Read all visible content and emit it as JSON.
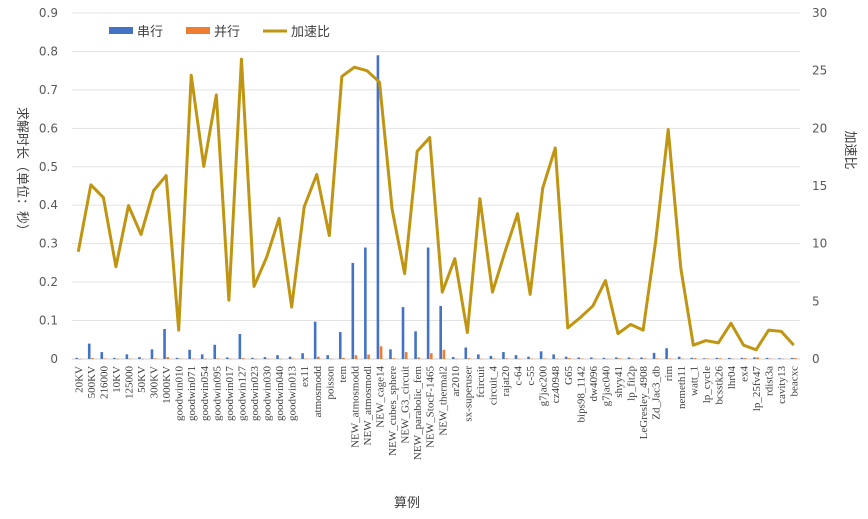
{
  "chart_data": {
    "type": "bar+line",
    "xlabel": "算例",
    "ylabel_left": "求解时长（单位：秒）",
    "ylabel_right": "加速比",
    "ylim_left": [
      0,
      0.9
    ],
    "ylim_right": [
      0,
      30
    ],
    "yticks_left": [
      "0",
      "0.1",
      "0.2",
      "0.3",
      "0.4",
      "0.5",
      "0.6",
      "0.7",
      "0.8",
      "0.9"
    ],
    "yticks_right": [
      "0",
      "5",
      "10",
      "15",
      "20",
      "25",
      "30"
    ],
    "legend_position": "top-left",
    "categories": [
      "20KV",
      "500KV",
      "216000",
      "10KV",
      "125000",
      "50KV",
      "300KV",
      "1000KV",
      "goodwin010",
      "goodwin071",
      "goodwin054",
      "goodwin095",
      "goodwin017",
      "goodwin127",
      "goodwin023",
      "goodwin030",
      "goodwin040",
      "goodwin013",
      "ex11",
      "atmosmodd",
      "poisson",
      "tem",
      "NEW_atmosmodd",
      "NEW_atmosmodl",
      "NEW_cage14",
      "NEW_cubes_sphere",
      "NEW_G3_circuit",
      "NEW_parabolic_fem",
      "NEW_StocF-1465",
      "NEW_thermal2",
      "ar2010",
      "sx-superuser",
      "fcircuit",
      "circuit_4",
      "rajat20",
      "c-64",
      "c-55",
      "g7jac200",
      "cz40948",
      "G65",
      "bips98_1142",
      "dw4096",
      "g7jac040",
      "shyy41",
      "lp_fit2p",
      "LeGresley_4908",
      "Zd_Jac3_db",
      "rim",
      "nemeth11",
      "watt_1",
      "lp_cycle",
      "bcsstk26",
      "lhr04",
      "ex4",
      "lp_25fv47",
      "rdist3a",
      "cavity13",
      "beacxc"
    ],
    "series": [
      {
        "name": "串行",
        "axis": "left",
        "color": "#4472C4",
        "values": [
          0.003,
          0.04,
          0.018,
          0.003,
          0.012,
          0.005,
          0.025,
          0.078,
          0.003,
          0.024,
          0.012,
          0.037,
          0.004,
          0.065,
          0.003,
          0.005,
          0.01,
          0.006,
          0.015,
          0.097,
          0.01,
          0.07,
          0.25,
          0.29,
          0.79,
          0.025,
          0.135,
          0.072,
          0.29,
          0.138,
          0.005,
          0.03,
          0.012,
          0.008,
          0.018,
          0.01,
          0.006,
          0.02,
          0.012,
          0.006,
          0.004,
          0.004,
          0.003,
          0.004,
          0.004,
          0.004,
          0.016,
          0.028,
          0.006,
          0.003,
          0.002,
          0.003,
          0.003,
          0.003,
          0.004,
          0.003,
          0.002,
          0.003
        ]
      },
      {
        "name": "并行",
        "axis": "left",
        "color": "#ED7D31",
        "values": [
          0.0003,
          0.0027,
          0.0013,
          0.0004,
          0.0009,
          0.0005,
          0.0017,
          0.005,
          0.0012,
          0.001,
          0.0007,
          0.0016,
          0.0008,
          0.0025,
          0.0005,
          0.0006,
          0.0008,
          0.0013,
          0.0011,
          0.006,
          0.0009,
          0.0029,
          0.0099,
          0.0116,
          0.033,
          0.0019,
          0.018,
          0.004,
          0.015,
          0.024,
          0.0006,
          0.0023,
          0.0009,
          0.0014,
          0.0018,
          0.0008,
          0.0011,
          0.0014,
          0.0007,
          0.0022,
          0.0013,
          0.001,
          0.0006,
          0.0018,
          0.0014,
          0.0017,
          0.0016,
          0.0014,
          0.0008,
          0.0024,
          0.0013,
          0.0021,
          0.001,
          0.0023,
          0.0043,
          0.0012,
          0.0008,
          0.0024
        ]
      },
      {
        "name": "加速比",
        "axis": "right",
        "color": "#C09511",
        "values": [
          9.3,
          15.1,
          14.0,
          8.0,
          13.3,
          10.8,
          14.6,
          15.9,
          2.5,
          24.6,
          16.7,
          22.9,
          5.1,
          26.0,
          6.3,
          8.8,
          12.2,
          4.5,
          13.2,
          16.0,
          10.7,
          24.5,
          25.3,
          25.0,
          24.0,
          13.0,
          7.4,
          18.0,
          19.2,
          5.8,
          8.7,
          2.3,
          13.9,
          5.8,
          9.3,
          12.6,
          5.6,
          14.8,
          18.3,
          2.7,
          3.6,
          4.6,
          6.8,
          2.2,
          3.0,
          2.5,
          10.2,
          19.9,
          7.9,
          1.2,
          1.6,
          1.4,
          3.1,
          1.2,
          0.8,
          2.5,
          2.4,
          1.2
        ]
      }
    ]
  }
}
